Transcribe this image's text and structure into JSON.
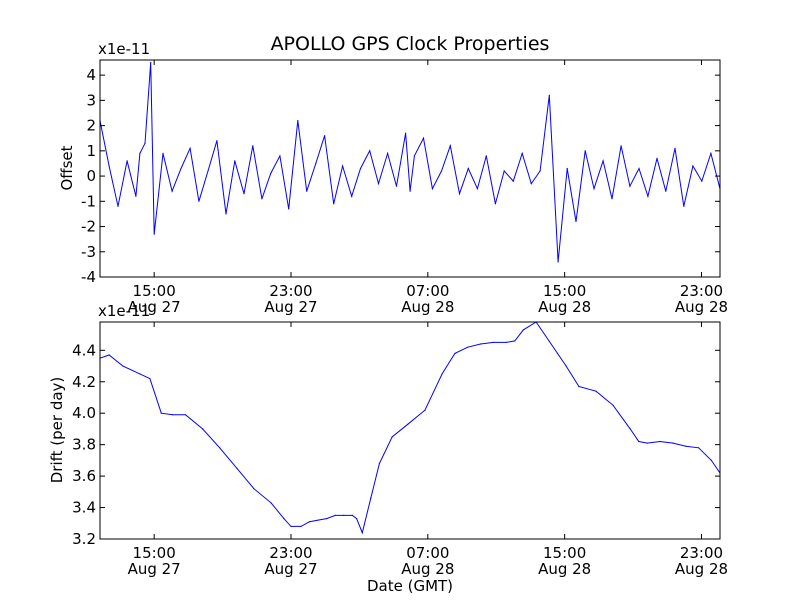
{
  "chart_data": [
    {
      "type": "line",
      "title": "APOLLO GPS Clock Properties",
      "xlabel": "",
      "ylabel": "Offset",
      "y_multiplier": "x1e-11",
      "ylim": [
        -4,
        4.6
      ],
      "yticks": [
        -4,
        -3,
        -2,
        -1,
        0,
        1,
        2,
        3,
        4
      ],
      "ytick_labels": [
        "-4",
        "-3",
        "-2",
        "-1",
        "0",
        "1",
        "2",
        "3",
        "4"
      ],
      "xlim": [
        "Aug 27 11:50",
        "Aug 29 00:05"
      ],
      "xticks": [
        {
          "x": "Aug 27 15:00",
          "line1": "15:00",
          "line2": "Aug 27"
        },
        {
          "x": "Aug 27 23:00",
          "line1": "23:00",
          "line2": "Aug 27"
        },
        {
          "x": "Aug 28 07:00",
          "line1": "07:00",
          "line2": "Aug 28"
        },
        {
          "x": "Aug 28 15:00",
          "line1": "15:00",
          "line2": "Aug 28"
        },
        {
          "x": "Aug 28 23:00",
          "line1": "23:00",
          "line2": "Aug 28"
        }
      ],
      "color": "#0000ff",
      "series": [
        {
          "x": [
            "Aug 27 11:50",
            "Aug 27 12:22",
            "Aug 27 12:53",
            "Aug 27 13:25",
            "Aug 27 13:56",
            "Aug 27 14:10",
            "Aug 27 14:28",
            "Aug 27 14:48",
            "Aug 27 15:00",
            "Aug 27 15:31",
            "Aug 27 16:03",
            "Aug 27 16:34",
            "Aug 27 17:06",
            "Aug 27 17:37",
            "Aug 27 18:09",
            "Aug 27 18:40",
            "Aug 27 19:12",
            "Aug 27 19:43",
            "Aug 27 20:15",
            "Aug 27 20:46",
            "Aug 27 21:18",
            "Aug 27 21:49",
            "Aug 27 22:21",
            "Aug 27 22:52",
            "Aug 27 23:24",
            "Aug 27 23:55",
            "Aug 28 00:27",
            "Aug 28 00:58",
            "Aug 28 01:30",
            "Aug 28 02:01",
            "Aug 28 02:33",
            "Aug 28 03:04",
            "Aug 28 03:36",
            "Aug 28 04:07",
            "Aug 28 04:39",
            "Aug 28 05:10",
            "Aug 28 05:42",
            "Aug 28 05:58",
            "Aug 28 06:13",
            "Aug 28 06:45",
            "Aug 28 07:16",
            "Aug 28 07:48",
            "Aug 28 08:19",
            "Aug 28 08:51",
            "Aug 28 09:22",
            "Aug 28 09:54",
            "Aug 28 10:25",
            "Aug 28 10:57",
            "Aug 28 11:28",
            "Aug 28 12:00",
            "Aug 28 12:31",
            "Aug 28 13:03",
            "Aug 28 13:34",
            "Aug 28 14:06",
            "Aug 28 14:37",
            "Aug 28 15:09",
            "Aug 28 15:40",
            "Aug 28 16:12",
            "Aug 28 16:43",
            "Aug 28 17:15",
            "Aug 28 17:46",
            "Aug 28 18:18",
            "Aug 28 18:49",
            "Aug 28 19:21",
            "Aug 28 19:52",
            "Aug 28 20:24",
            "Aug 28 20:55",
            "Aug 28 21:27",
            "Aug 28 21:58",
            "Aug 28 22:30",
            "Aug 28 23:01",
            "Aug 28 23:33",
            "Aug 29 00:05"
          ],
          "y": [
            2.2,
            0.4,
            -1.2,
            0.6,
            -0.8,
            0.9,
            1.3,
            4.5,
            -2.3,
            0.9,
            -0.6,
            0.3,
            1.1,
            -1.0,
            0.2,
            1.4,
            -1.5,
            0.6,
            -0.7,
            1.2,
            -0.9,
            0.1,
            0.8,
            -1.3,
            2.2,
            -0.6,
            0.5,
            1.6,
            -1.1,
            0.4,
            -0.8,
            0.3,
            1.0,
            -0.3,
            0.9,
            -0.4,
            1.7,
            -0.6,
            0.8,
            1.5,
            -0.5,
            0.2,
            1.2,
            -0.7,
            0.3,
            -0.5,
            0.8,
            -1.1,
            0.2,
            -0.2,
            0.9,
            -0.3,
            0.2,
            3.2,
            -3.4,
            0.3,
            -1.8,
            1.0,
            -0.5,
            0.6,
            -0.9,
            1.2,
            -0.4,
            0.3,
            -0.8,
            0.7,
            -0.6,
            1.1,
            -1.2,
            0.4,
            -0.2,
            0.9,
            -0.5
          ]
        }
      ]
    },
    {
      "type": "line",
      "title": "",
      "xlabel": "Date (GMT)",
      "ylabel": "Drift (per day)",
      "y_multiplier": "x1e-11",
      "ylim": [
        3.2,
        4.58
      ],
      "yticks": [
        3.2,
        3.4,
        3.6,
        3.8,
        4.0,
        4.2,
        4.4
      ],
      "ytick_labels": [
        "3.2",
        "3.4",
        "3.6",
        "3.8",
        "4.0",
        "4.2",
        "4.4"
      ],
      "xlim": [
        "Aug 27 11:50",
        "Aug 29 00:05"
      ],
      "xticks": [
        {
          "x": "Aug 27 15:00",
          "line1": "15:00",
          "line2": "Aug 27"
        },
        {
          "x": "Aug 27 23:00",
          "line1": "23:00",
          "line2": "Aug 27"
        },
        {
          "x": "Aug 28 07:00",
          "line1": "07:00",
          "line2": "Aug 28"
        },
        {
          "x": "Aug 28 15:00",
          "line1": "15:00",
          "line2": "Aug 28"
        },
        {
          "x": "Aug 28 23:00",
          "line1": "23:00",
          "line2": "Aug 28"
        }
      ],
      "color": "#0000ff",
      "series": [
        {
          "x": [
            "Aug 27 11:50",
            "Aug 27 12:22",
            "Aug 27 13:10",
            "Aug 27 14:10",
            "Aug 27 14:45",
            "Aug 27 15:25",
            "Aug 27 16:05",
            "Aug 27 16:50",
            "Aug 27 17:50",
            "Aug 27 18:50",
            "Aug 27 19:50",
            "Aug 27 20:50",
            "Aug 27 21:50",
            "Aug 27 22:35",
            "Aug 27 23:00",
            "Aug 27 23:35",
            "Aug 28 00:05",
            "Aug 28 00:35",
            "Aug 28 01:05",
            "Aug 28 01:35",
            "Aug 28 02:05",
            "Aug 28 02:35",
            "Aug 28 02:50",
            "Aug 28 03:10",
            "Aug 28 03:40",
            "Aug 28 04:10",
            "Aug 28 04:55",
            "Aug 28 05:50",
            "Aug 28 06:50",
            "Aug 28 07:50",
            "Aug 28 08:35",
            "Aug 28 09:20",
            "Aug 28 10:05",
            "Aug 28 10:50",
            "Aug 28 11:35",
            "Aug 28 12:05",
            "Aug 28 12:35",
            "Aug 28 13:20",
            "Aug 28 14:05",
            "Aug 28 14:35",
            "Aug 28 15:05",
            "Aug 28 15:50",
            "Aug 28 16:50",
            "Aug 28 17:50",
            "Aug 28 18:50",
            "Aug 28 19:20",
            "Aug 28 19:50",
            "Aug 28 20:35",
            "Aug 28 21:20",
            "Aug 28 22:05",
            "Aug 28 22:50",
            "Aug 28 23:35",
            "Aug 29 00:05"
          ],
          "y": [
            4.35,
            4.37,
            4.3,
            4.25,
            4.22,
            4.0,
            3.99,
            3.99,
            3.9,
            3.78,
            3.65,
            3.52,
            3.43,
            3.33,
            3.28,
            3.28,
            3.31,
            3.32,
            3.33,
            3.35,
            3.35,
            3.35,
            3.33,
            3.24,
            3.46,
            3.68,
            3.85,
            3.93,
            4.02,
            4.25,
            4.38,
            4.42,
            4.44,
            4.45,
            4.45,
            4.46,
            4.53,
            4.58,
            4.46,
            4.38,
            4.3,
            4.17,
            4.14,
            4.05,
            3.9,
            3.82,
            3.81,
            3.82,
            3.81,
            3.79,
            3.78,
            3.7,
            3.62
          ]
        }
      ]
    }
  ]
}
